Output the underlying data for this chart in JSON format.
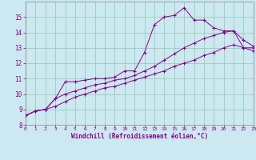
{
  "xlabel": "Windchill (Refroidissement éolien,°C)",
  "xlim": [
    0,
    23
  ],
  "ylim": [
    8,
    16
  ],
  "yticks": [
    8,
    9,
    10,
    11,
    12,
    13,
    14,
    15
  ],
  "xticks": [
    0,
    1,
    2,
    3,
    4,
    5,
    6,
    7,
    8,
    9,
    10,
    11,
    12,
    13,
    14,
    15,
    16,
    17,
    18,
    19,
    20,
    21,
    22,
    23
  ],
  "bg_color": "#cce8f0",
  "grid_color": "#99ccbb",
  "line_color": "#880088",
  "line1_y": [
    8.6,
    8.9,
    9.0,
    9.7,
    10.8,
    10.8,
    10.9,
    11.0,
    11.0,
    11.1,
    11.5,
    11.5,
    12.7,
    14.5,
    15.0,
    15.1,
    15.6,
    14.8,
    14.8,
    14.3,
    14.1,
    14.1,
    13.0,
    13.0
  ],
  "line2_y": [
    8.6,
    8.9,
    9.0,
    9.7,
    10.0,
    10.2,
    10.4,
    10.6,
    10.7,
    10.9,
    11.0,
    11.2,
    11.5,
    11.8,
    12.2,
    12.6,
    13.0,
    13.3,
    13.6,
    13.8,
    14.0,
    14.1,
    13.5,
    13.1
  ],
  "line3_y": [
    8.6,
    8.9,
    9.0,
    9.2,
    9.5,
    9.8,
    10.0,
    10.2,
    10.4,
    10.5,
    10.7,
    10.9,
    11.1,
    11.3,
    11.5,
    11.8,
    12.0,
    12.2,
    12.5,
    12.7,
    13.0,
    13.2,
    13.0,
    12.8
  ]
}
